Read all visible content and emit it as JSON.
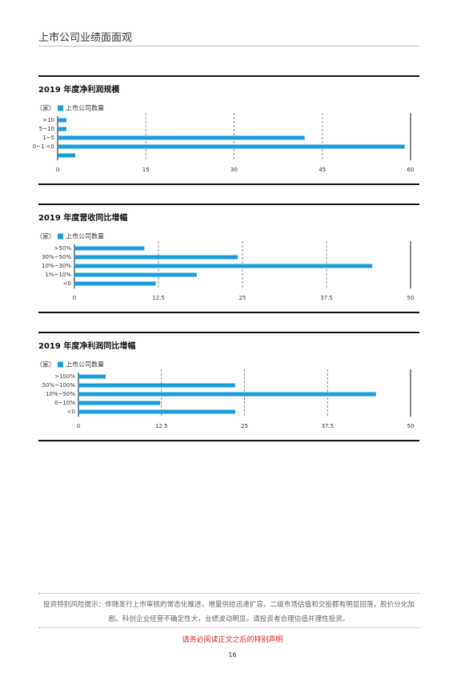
{
  "header": {
    "title": "上市公司业绩面面观"
  },
  "chart_data": [
    {
      "type": "bar",
      "orientation": "horizontal",
      "title": "2019 年度净利润规模",
      "unit": "（家）",
      "categories": [
        ">10",
        "5~10",
        "1~5",
        "0~1 <0",
        null
      ],
      "series": [
        {
          "name": "上市公司数量",
          "color": "#1a9edb",
          "values": [
            1.5,
            1.5,
            42,
            59,
            3
          ]
        }
      ],
      "xlim": [
        0,
        60
      ],
      "xticks": [
        0,
        15,
        30,
        45,
        60
      ],
      "grid": true
    },
    {
      "type": "bar",
      "orientation": "horizontal",
      "title": "2019 年度营收同比增幅",
      "unit": "（家）",
      "categories": [
        ">50%",
        "30%~50%",
        "10%~30%",
        "1%~10%",
        "<0"
      ],
      "series": [
        {
          "name": "上市公司数量",
          "color": "#1a9edb",
          "values": [
            10.4,
            24.3,
            44.3,
            18.2,
            12.1
          ]
        }
      ],
      "xlim": [
        0,
        50
      ],
      "xticks": [
        0,
        12.5,
        25,
        37.5,
        50
      ],
      "grid": true
    },
    {
      "type": "bar",
      "orientation": "horizontal",
      "title": "2019 年度净利润同比增幅",
      "unit": "（家）",
      "categories": [
        ">100%",
        "50%~100%",
        "10%~50%",
        "0~10%",
        "<0"
      ],
      "series": [
        {
          "name": "上市公司数量",
          "color": "#1a9edb",
          "values": [
            4.1,
            23.6,
            44.8,
            12.3,
            23.6
          ]
        }
      ],
      "xlim": [
        0,
        50
      ],
      "xticks": [
        0,
        12.5,
        25,
        37.5,
        50
      ],
      "grid": true
    }
  ],
  "footer": {
    "risk_notice": "投资特别风险提示：伴随发行上市审核的常态化推进，增量供给迅速扩容，二级市场估值和交投都有明显回落，股价分化加剧。科创企业经营不确定性大，业绩波动明显。请投资者合理估值并理性投资。",
    "disclaimer": "请务必阅读正文之后的特别声明",
    "page_number": "16"
  }
}
